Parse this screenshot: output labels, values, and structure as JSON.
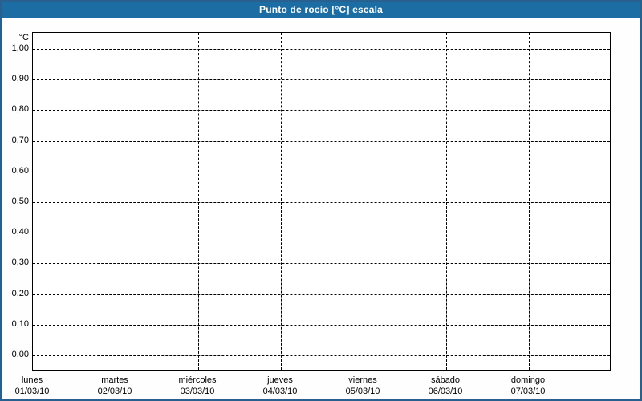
{
  "window": {
    "title": "Punto de rocío [°C] escala"
  },
  "colors": {
    "titlebar_bg": "#1b6da3",
    "titlebar_text": "#ffffff",
    "outer_border": "#28618f",
    "page_bg": "#fdfefd",
    "plot_bg": "#fefffe",
    "grid": "#000000",
    "label_text": "#000000"
  },
  "chart_data": {
    "type": "line",
    "title": "Punto de rocío [°C] escala",
    "y_unit_label": "°C",
    "xlabel": "",
    "ylabel": "",
    "ylim": [
      0.0,
      1.0
    ],
    "y_tick_step": 0.1,
    "y_tick_labels": [
      "1,00",
      "0,90",
      "0,80",
      "0,70",
      "0,60",
      "0,50",
      "0,40",
      "0,30",
      "0,20",
      "0,10",
      "0,00"
    ],
    "x_categories": [
      {
        "day": "lunes",
        "date": "01/03/10"
      },
      {
        "day": "martes",
        "date": "02/03/10"
      },
      {
        "day": "miércoles",
        "date": "03/03/10"
      },
      {
        "day": "jueves",
        "date": "04/03/10"
      },
      {
        "day": "viernes",
        "date": "05/03/10"
      },
      {
        "day": "sábado",
        "date": "06/03/10"
      },
      {
        "day": "domingo",
        "date": "07/03/10"
      }
    ],
    "grid": "dashed",
    "legend": "none",
    "series": []
  }
}
